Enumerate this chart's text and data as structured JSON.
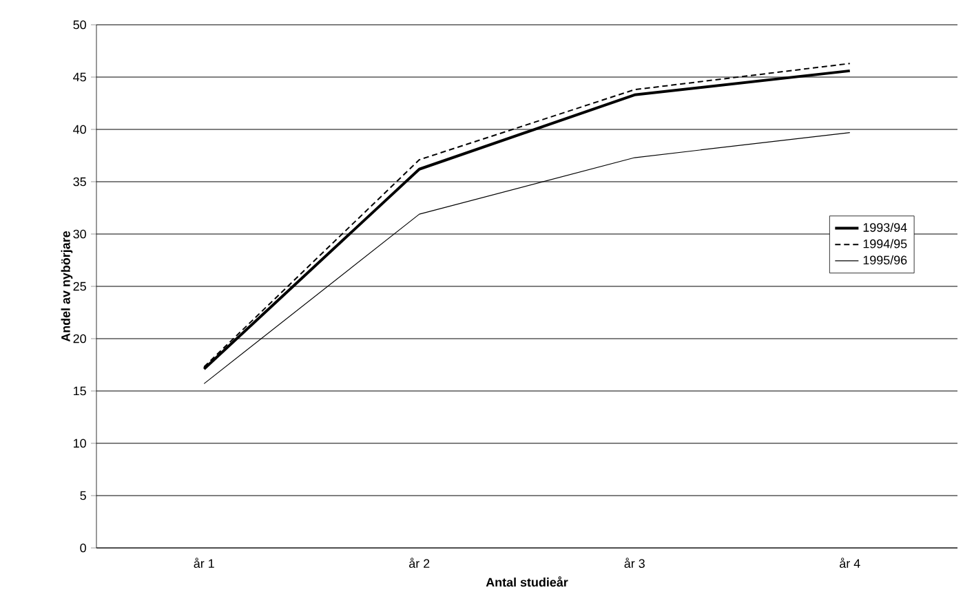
{
  "chart_data": {
    "type": "line",
    "xlabel": "Antal studieår",
    "ylabel": "Andel av nybörjare",
    "categories": [
      "år 1",
      "år 2",
      "år 3",
      "år 4"
    ],
    "series": [
      {
        "name": "1993/94",
        "color": "#000000",
        "line_style": "solid",
        "values": [
          17.1,
          36.2,
          43.3,
          45.6
        ]
      },
      {
        "name": "1994/95",
        "color": "#000000",
        "line_style": "dashed",
        "values": [
          17.3,
          37.1,
          43.8,
          46.3
        ]
      },
      {
        "name": "1995/96",
        "color": "#000000",
        "line_style": "solid",
        "values": [
          15.7,
          31.9,
          37.3,
          39.7
        ]
      }
    ],
    "ylim": [
      0,
      50
    ],
    "yticks": [
      0,
      5,
      10,
      15,
      20,
      25,
      30,
      35,
      40,
      45,
      50
    ],
    "grid": "y",
    "legend": "right",
    "marker": "none"
  }
}
